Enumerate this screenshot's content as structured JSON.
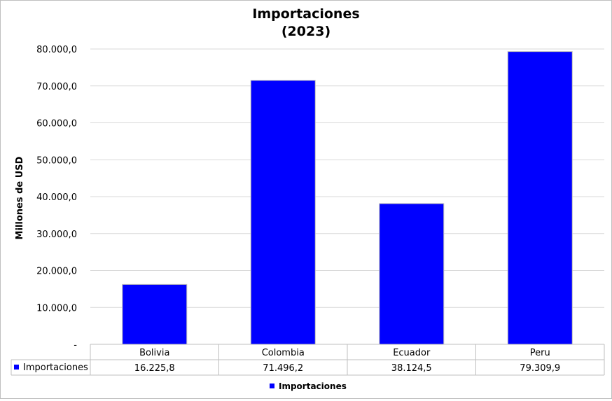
{
  "chart_data": {
    "type": "bar",
    "title": "Importaciones",
    "subtitle": "(2023)",
    "ylabel": "Millones de USD",
    "xlabel": "",
    "ylim": [
      0,
      80000
    ],
    "ytick_step": 10000,
    "yticks": [
      "-",
      "10.000,0",
      "20.000,0",
      "30.000,0",
      "40.000,0",
      "50.000,0",
      "60.000,0",
      "70.000,0",
      "80.000,0"
    ],
    "categories": [
      "Bolivia",
      "Colombia",
      "Ecuador",
      "Peru"
    ],
    "grid": true,
    "legend_position": "bottom",
    "series": [
      {
        "name": "Importaciones",
        "color": "#0000ff",
        "values": [
          16225.8,
          71496.2,
          38124.5,
          79309.9
        ],
        "value_labels": [
          "16.225,8",
          "71.496,2",
          "38.124,5",
          "79.309,9"
        ]
      }
    ]
  }
}
